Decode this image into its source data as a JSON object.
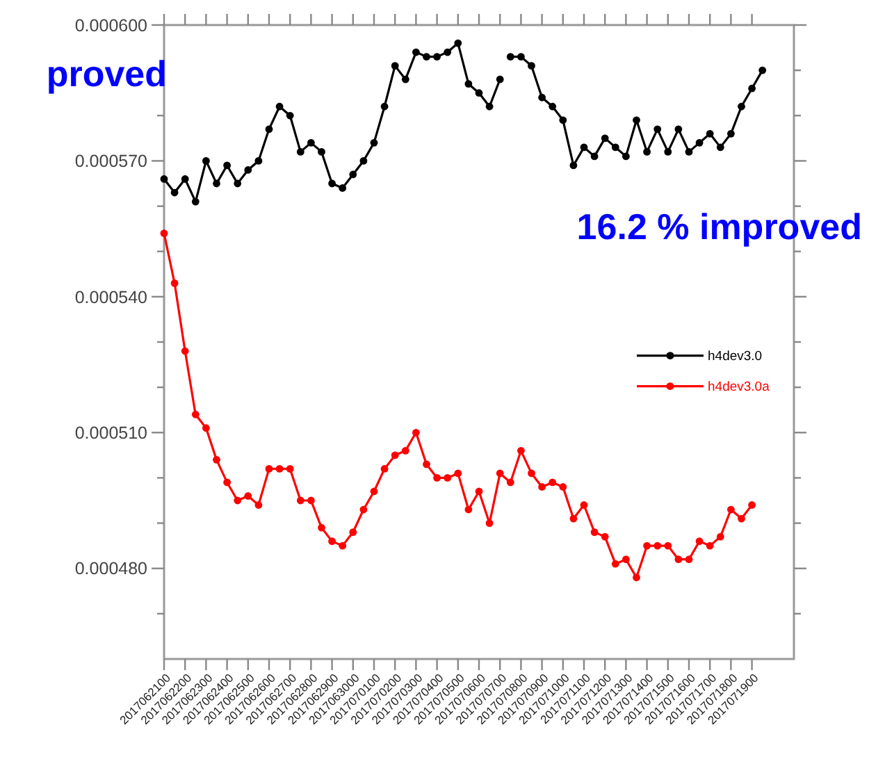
{
  "chart_data": {
    "type": "line",
    "series": [
      {
        "name": "h4dev3.0",
        "color": "#000000",
        "x": [
          "2017-06-21T00:00",
          "2017-06-21T12:00",
          "2017-06-22T00:00",
          "2017-06-22T12:00",
          "2017-06-23T00:00",
          "2017-06-23T12:00",
          "2017-06-24T00:00",
          "2017-06-24T12:00",
          "2017-06-25T00:00",
          "2017-06-25T12:00",
          "2017-06-26T00:00",
          "2017-06-26T12:00",
          "2017-06-27T00:00",
          "2017-06-27T12:00",
          "2017-06-28T00:00",
          "2017-06-28T12:00",
          "2017-06-29T00:00",
          "2017-06-29T12:00",
          "2017-06-30T00:00",
          "2017-06-30T12:00",
          "2017-07-01T00:00",
          "2017-07-01T12:00",
          "2017-07-02T00:00",
          "2017-07-02T12:00",
          "2017-07-03T00:00",
          "2017-07-03T12:00",
          "2017-07-04T00:00",
          "2017-07-04T12:00",
          "2017-07-05T00:00",
          "2017-07-05T12:00",
          "2017-07-06T00:00",
          "2017-07-06T12:00",
          "2017-07-07T00:00",
          "2017-07-07T06:00",
          "2017-07-07T12:00",
          "2017-07-08T00:00",
          "2017-07-08T12:00",
          "2017-07-09T00:00",
          "2017-07-09T12:00",
          "2017-07-10T00:00",
          "2017-07-10T12:00",
          "2017-07-11T00:00",
          "2017-07-11T12:00",
          "2017-07-12T00:00",
          "2017-07-12T12:00",
          "2017-07-13T00:00",
          "2017-07-13T12:00",
          "2017-07-14T00:00",
          "2017-07-14T12:00",
          "2017-07-15T00:00",
          "2017-07-15T12:00",
          "2017-07-16T00:00",
          "2017-07-16T12:00",
          "2017-07-17T00:00",
          "2017-07-17T12:00",
          "2017-07-18T00:00",
          "2017-07-18T12:00",
          "2017-07-19T00:00",
          "2017-07-19T12:00"
        ],
        "values": [
          0.000566,
          0.000563,
          0.000566,
          0.000561,
          0.00057,
          0.000565,
          0.000569,
          0.000565,
          0.000568,
          0.00057,
          0.000577,
          0.000582,
          0.00058,
          0.000572,
          0.000574,
          0.000572,
          0.000565,
          0.000564,
          0.000567,
          0.00057,
          0.000574,
          0.000582,
          0.000591,
          0.000588,
          0.000594,
          0.000593,
          0.000593,
          0.000594,
          0.000596,
          0.000587,
          0.000585,
          0.000582,
          0.000588,
          null,
          0.000593,
          0.000593,
          0.000591,
          0.000584,
          0.000582,
          0.000579,
          0.000569,
          0.000573,
          0.000571,
          0.000575,
          0.000573,
          0.000571,
          0.000579,
          0.000572,
          0.000577,
          0.000572,
          0.000577,
          0.000572,
          0.000574,
          0.000576,
          0.000573,
          0.000576,
          0.000582,
          0.000586,
          0.00059
        ]
      },
      {
        "name": "h4dev3.0a",
        "color": "#ff0000",
        "x": [
          "2017-06-21T00:00",
          "2017-06-21T12:00",
          "2017-06-22T00:00",
          "2017-06-22T12:00",
          "2017-06-23T00:00",
          "2017-06-23T12:00",
          "2017-06-24T00:00",
          "2017-06-24T12:00",
          "2017-06-25T00:00",
          "2017-06-25T12:00",
          "2017-06-26T00:00",
          "2017-06-26T12:00",
          "2017-06-27T00:00",
          "2017-06-27T12:00",
          "2017-06-28T00:00",
          "2017-06-28T12:00",
          "2017-06-29T00:00",
          "2017-06-29T12:00",
          "2017-06-30T00:00",
          "2017-06-30T12:00",
          "2017-07-01T00:00",
          "2017-07-01T12:00",
          "2017-07-02T00:00",
          "2017-07-02T12:00",
          "2017-07-03T00:00",
          "2017-07-03T12:00",
          "2017-07-04T00:00",
          "2017-07-04T12:00",
          "2017-07-05T00:00",
          "2017-07-05T12:00",
          "2017-07-06T00:00",
          "2017-07-06T12:00",
          "2017-07-07T00:00",
          "2017-07-07T12:00",
          "2017-07-08T00:00",
          "2017-07-08T12:00",
          "2017-07-09T00:00",
          "2017-07-09T12:00",
          "2017-07-10T00:00",
          "2017-07-10T12:00",
          "2017-07-11T00:00",
          "2017-07-11T12:00",
          "2017-07-12T00:00",
          "2017-07-12T12:00",
          "2017-07-13T00:00",
          "2017-07-13T12:00",
          "2017-07-14T00:00",
          "2017-07-14T12:00",
          "2017-07-15T00:00",
          "2017-07-15T12:00",
          "2017-07-16T00:00",
          "2017-07-16T12:00",
          "2017-07-17T00:00",
          "2017-07-17T12:00",
          "2017-07-18T00:00",
          "2017-07-18T12:00",
          "2017-07-19T00:00"
        ],
        "values": [
          0.000554,
          0.000543,
          0.000528,
          0.000514,
          0.000511,
          0.000504,
          0.000499,
          0.000495,
          0.000496,
          0.000494,
          0.000502,
          0.000502,
          0.000502,
          0.000495,
          0.000495,
          0.000489,
          0.000486,
          0.000485,
          0.000488,
          0.000493,
          0.000497,
          0.000502,
          0.000505,
          0.000506,
          0.00051,
          0.000503,
          0.0005,
          0.0005,
          0.000501,
          0.000493,
          0.000497,
          0.00049,
          0.000501,
          0.000499,
          0.000506,
          0.000501,
          0.000498,
          0.000499,
          0.000498,
          0.000491,
          0.000494,
          0.000488,
          0.000487,
          0.000481,
          0.000482,
          0.000478,
          0.000485,
          0.000485,
          0.000485,
          0.000482,
          0.000482,
          0.000486,
          0.000485,
          0.000487,
          0.000493,
          0.000491,
          0.000494
        ]
      }
    ],
    "xlim": [
      "2017-06-21T00:00",
      "2017-07-21T00:00"
    ],
    "xticks": [
      {
        "value": "2017-06-21T00:00",
        "label": "2017062100"
      },
      {
        "value": "2017-06-22T00:00",
        "label": "2017062200"
      },
      {
        "value": "2017-06-23T00:00",
        "label": "2017062300"
      },
      {
        "value": "2017-06-24T00:00",
        "label": "2017062400"
      },
      {
        "value": "2017-06-25T00:00",
        "label": "2017062500"
      },
      {
        "value": "2017-06-26T00:00",
        "label": "2017062600"
      },
      {
        "value": "2017-06-27T00:00",
        "label": "2017062700"
      },
      {
        "value": "2017-06-28T00:00",
        "label": "2017062800"
      },
      {
        "value": "2017-06-29T00:00",
        "label": "2017062900"
      },
      {
        "value": "2017-06-30T00:00",
        "label": "2017063000"
      },
      {
        "value": "2017-07-01T00:00",
        "label": "2017070100"
      },
      {
        "value": "2017-07-02T00:00",
        "label": "2017070200"
      },
      {
        "value": "2017-07-03T00:00",
        "label": "2017070300"
      },
      {
        "value": "2017-07-04T00:00",
        "label": "2017070400"
      },
      {
        "value": "2017-07-05T00:00",
        "label": "2017070500"
      },
      {
        "value": "2017-07-06T00:00",
        "label": "2017070600"
      },
      {
        "value": "2017-07-07T00:00",
        "label": "2017070700"
      },
      {
        "value": "2017-07-08T00:00",
        "label": "2017070800"
      },
      {
        "value": "2017-07-09T00:00",
        "label": "2017070900"
      },
      {
        "value": "2017-07-10T00:00",
        "label": "2017071000"
      },
      {
        "value": "2017-07-11T00:00",
        "label": "2017071100"
      },
      {
        "value": "2017-07-12T00:00",
        "label": "2017071200"
      },
      {
        "value": "2017-07-13T00:00",
        "label": "2017071300"
      },
      {
        "value": "2017-07-14T00:00",
        "label": "2017071400"
      },
      {
        "value": "2017-07-15T00:00",
        "label": "2017071500"
      },
      {
        "value": "2017-07-16T00:00",
        "label": "2017071600"
      },
      {
        "value": "2017-07-17T00:00",
        "label": "2017071700"
      },
      {
        "value": "2017-07-18T00:00",
        "label": "2017071800"
      },
      {
        "value": "2017-07-19T00:00",
        "label": "2017071900"
      }
    ],
    "ylim": [
      0.00046,
      0.0006
    ],
    "yticks": [
      {
        "value": 0.00047,
        "label": null
      },
      {
        "value": 0.00048,
        "label": "0.000480"
      },
      {
        "value": 0.00049,
        "label": null
      },
      {
        "value": 0.0005,
        "label": null
      },
      {
        "value": 0.00051,
        "label": "0.000510"
      },
      {
        "value": 0.00052,
        "label": null
      },
      {
        "value": 0.00053,
        "label": null
      },
      {
        "value": 0.00054,
        "label": "0.000540"
      },
      {
        "value": 0.00055,
        "label": null
      },
      {
        "value": 0.00056,
        "label": null
      },
      {
        "value": 0.00057,
        "label": "0.000570"
      },
      {
        "value": 0.00058,
        "label": null
      },
      {
        "value": 0.00059,
        "label": null
      },
      {
        "value": 0.0006,
        "label": "0.000600"
      }
    ],
    "marker": "circle",
    "line_style": "solid",
    "legend": "right",
    "annotations": [
      "proved",
      "16.2 % improved"
    ]
  }
}
